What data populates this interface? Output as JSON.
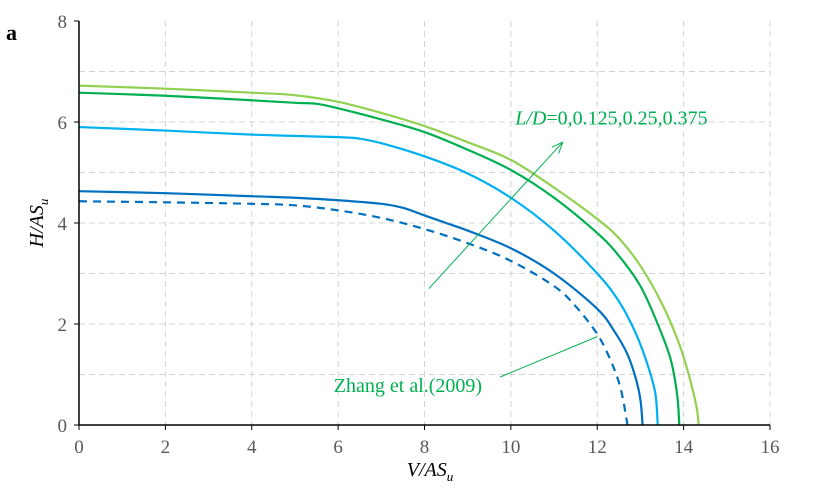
{
  "chart_data": {
    "type": "line",
    "panel_label": "a",
    "xlabel": "V/AS",
    "xlabel_sub": "u",
    "ylabel": "H/AS",
    "ylabel_sub": "u",
    "xlim": [
      0,
      16
    ],
    "ylim": [
      0,
      8
    ],
    "xticks": [
      "0",
      "2",
      "4",
      "6",
      "8",
      "10",
      "12",
      "14",
      "16"
    ],
    "yticks": [
      "0",
      "2",
      "4",
      "6",
      "8"
    ],
    "grid": true,
    "series": [
      {
        "name": "L/D=0",
        "color": "#0070C0",
        "dash": false,
        "x": [
          0,
          2,
          4,
          5,
          6,
          7,
          7.5,
          8,
          8.5,
          9,
          10,
          11,
          12,
          12.4,
          12.7,
          12.9,
          13.0,
          13.05
        ],
        "y": [
          4.63,
          4.59,
          4.53,
          4.5,
          4.45,
          4.38,
          4.3,
          4.15,
          4.0,
          3.85,
          3.5,
          3.0,
          2.3,
          1.85,
          1.4,
          0.9,
          0.5,
          0
        ]
      },
      {
        "name": "L/D=0.125",
        "color": "#00B0F0",
        "dash": false,
        "x": [
          0,
          2,
          4,
          6,
          6.5,
          7,
          8,
          9,
          10,
          11,
          12,
          12.5,
          12.9,
          13.2,
          13.35,
          13.4
        ],
        "y": [
          5.9,
          5.83,
          5.75,
          5.7,
          5.67,
          5.58,
          5.32,
          4.98,
          4.5,
          3.85,
          3.0,
          2.45,
          1.8,
          1.1,
          0.6,
          0
        ]
      },
      {
        "name": "L/D=0.25",
        "color": "#00B050",
        "dash": false,
        "x": [
          0,
          2,
          4,
          5,
          5.5,
          6,
          7,
          8,
          9,
          10,
          11,
          12,
          12.5,
          13,
          13.4,
          13.7,
          13.85,
          13.9
        ],
        "y": [
          6.58,
          6.52,
          6.43,
          6.38,
          6.36,
          6.27,
          6.05,
          5.8,
          5.45,
          5.05,
          4.5,
          3.8,
          3.35,
          2.75,
          2.0,
          1.3,
          0.6,
          0
        ]
      },
      {
        "name": "L/D=0.375",
        "color": "#92D050",
        "dash": false,
        "x": [
          0,
          2,
          4,
          5,
          6,
          7,
          8,
          9,
          10,
          11,
          12,
          12.5,
          13,
          13.5,
          13.9,
          14.15,
          14.3,
          14.35
        ],
        "y": [
          6.72,
          6.66,
          6.58,
          6.53,
          6.4,
          6.18,
          5.92,
          5.6,
          5.25,
          4.7,
          4.08,
          3.7,
          3.15,
          2.4,
          1.6,
          0.9,
          0.35,
          0
        ]
      },
      {
        "name": "Zhang et al.(2009)",
        "color": "#0070C0",
        "dash": true,
        "x": [
          0,
          2,
          4,
          5,
          6,
          7,
          8,
          9,
          10,
          11,
          11.5,
          12,
          12.3,
          12.5,
          12.6,
          12.65,
          12.7
        ],
        "y": [
          4.43,
          4.41,
          4.38,
          4.35,
          4.25,
          4.1,
          3.88,
          3.6,
          3.25,
          2.75,
          2.35,
          1.8,
          1.3,
          0.85,
          0.5,
          0.25,
          0
        ]
      }
    ],
    "annotations": [
      {
        "text_italic": "L/D",
        "text": "=0,0.125,0.25,0.375",
        "color": "#00B050",
        "at": [
          10.1,
          5.95
        ],
        "arrow_from": [
          8.1,
          2.7
        ],
        "arrow_to": [
          11.2,
          5.6
        ]
      },
      {
        "text": "Zhang et al.(2009)",
        "color": "#00B050",
        "at": [
          5.9,
          0.65
        ],
        "line_from": [
          9.75,
          0.95
        ],
        "line_to": [
          12.0,
          1.75
        ]
      }
    ]
  }
}
